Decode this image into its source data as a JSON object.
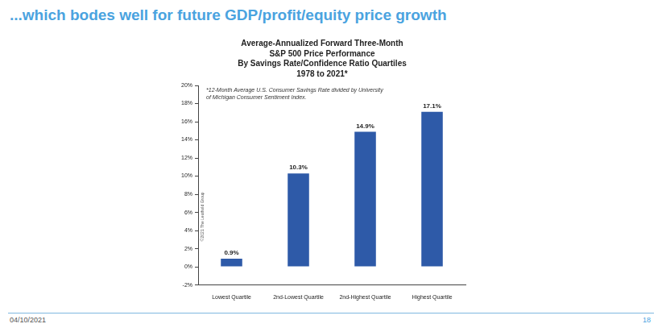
{
  "slide": {
    "heading": "...which bodes well for future GDP/profit/equity price growth",
    "date": "04/10/2021",
    "page": "18"
  },
  "chart_data": {
    "type": "bar",
    "title": [
      "Average-Annualized Forward Three-Month",
      "S&P 500 Price Performance",
      "By Savings Rate/Confidence Ratio Quartiles",
      "1978 to 2021*"
    ],
    "annotations": [
      "*12-Month Average U.S. Consumer Savings Rate divided by University of Michigan Consumer Sentiment Index.",
      "©2021 The Leuthold Group"
    ],
    "categories": [
      "Lowest Quartile",
      "2nd-Lowest Quartile",
      "2nd-Highest Quartile",
      "Highest Quartile"
    ],
    "values": [
      0.9,
      10.3,
      14.9,
      17.1
    ],
    "value_labels": [
      "0.9%",
      "10.3%",
      "14.9%",
      "17.1%"
    ],
    "color": "#2e5aa8",
    "ylim": [
      -2,
      20
    ],
    "yticks": [
      {
        "value": -2,
        "label": "-2%"
      },
      {
        "value": 0,
        "label": "0%"
      },
      {
        "value": 2,
        "label": "2%"
      },
      {
        "value": 4,
        "label": "4%"
      },
      {
        "value": 6,
        "label": "6%"
      },
      {
        "value": 8,
        "label": "8%"
      },
      {
        "value": 10,
        "label": "10%"
      },
      {
        "value": 12,
        "label": "12%"
      },
      {
        "value": 14,
        "label": "14%"
      },
      {
        "value": 16,
        "label": "16%"
      },
      {
        "value": 18,
        "label": "18%"
      },
      {
        "value": 20,
        "label": "20%"
      }
    ],
    "grid": false,
    "data_labels": true
  }
}
